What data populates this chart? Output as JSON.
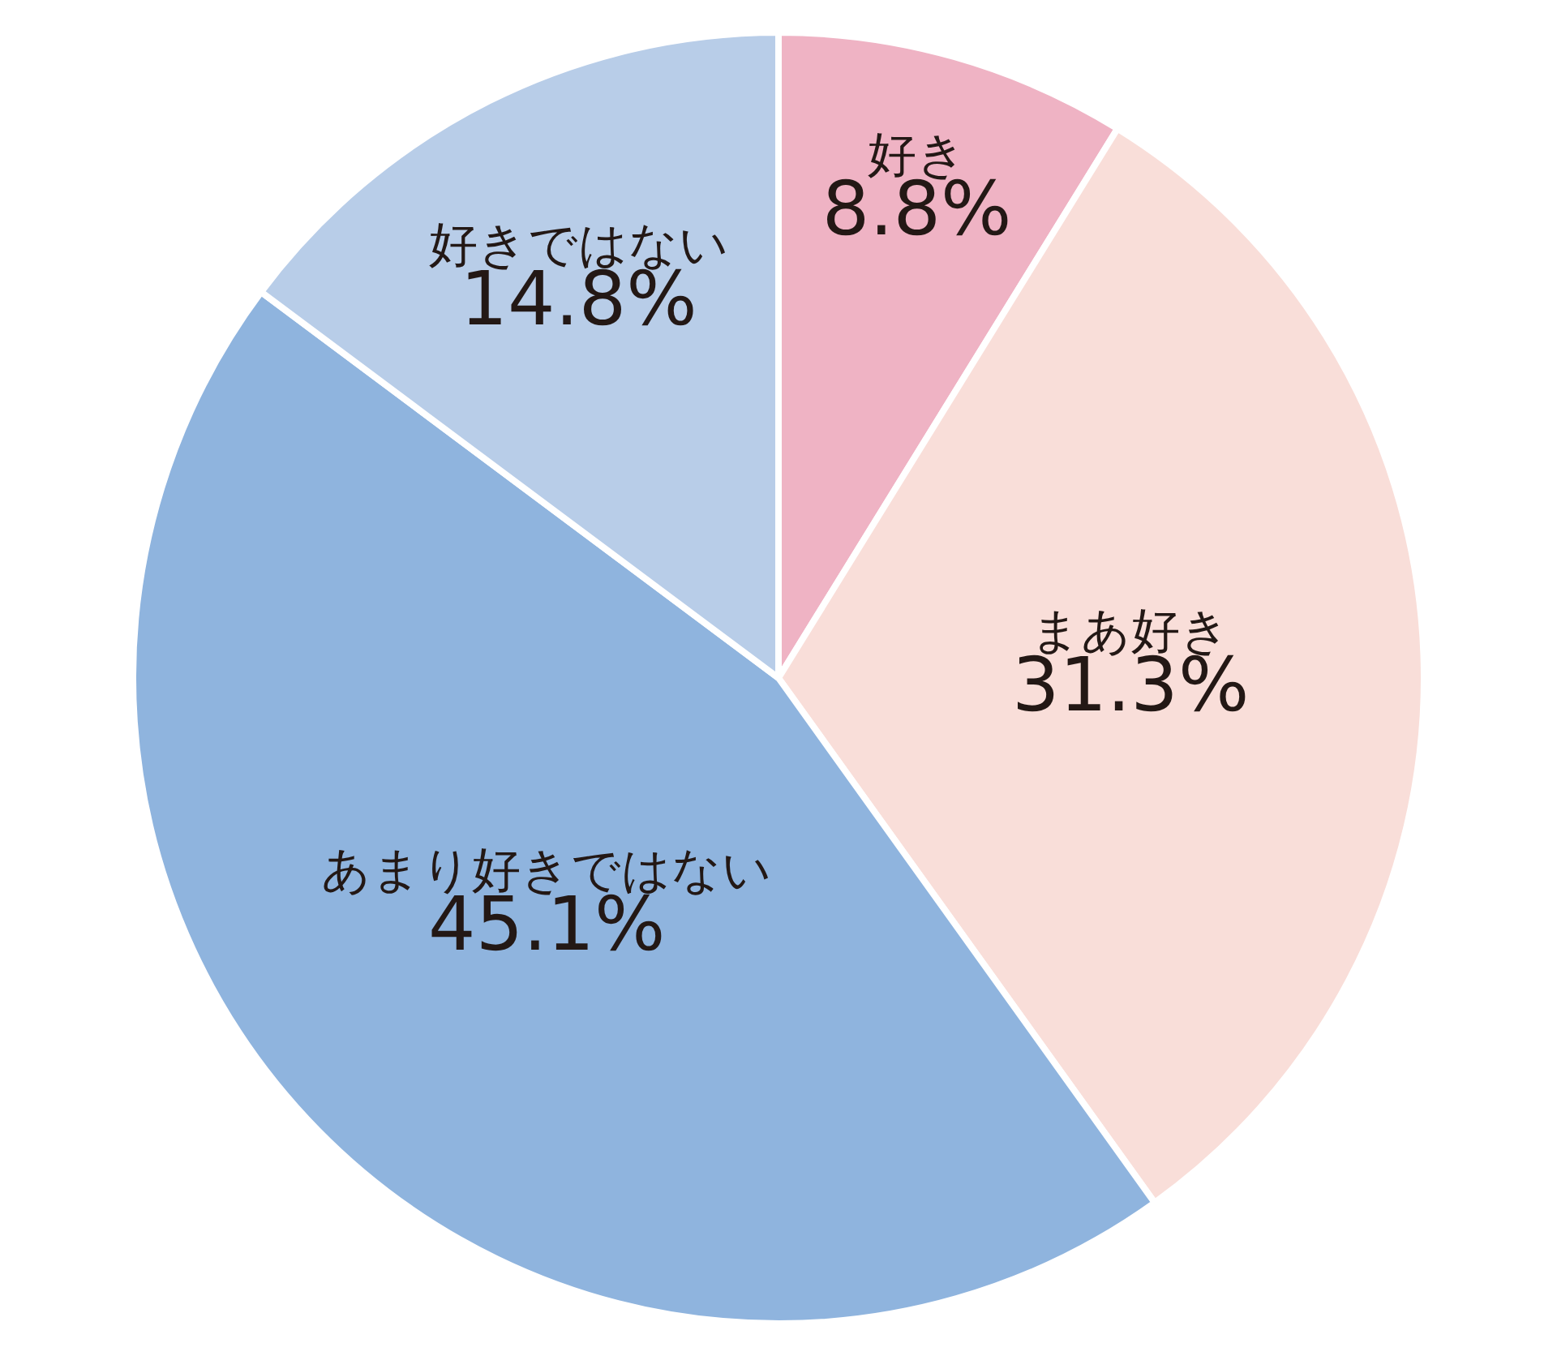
{
  "chart_data": {
    "type": "pie",
    "categories": [
      "好き",
      "まあ好き",
      "あまり好きではない",
      "好きではない"
    ],
    "values": [
      8.8,
      31.3,
      45.1,
      14.8
    ],
    "value_labels": [
      "8.8%",
      "31.3%",
      "45.1%",
      "14.8%"
    ],
    "colors": [
      "#efb3c4",
      "#f9ded9",
      "#8fb4de",
      "#b8cde8"
    ],
    "legend": false
  }
}
